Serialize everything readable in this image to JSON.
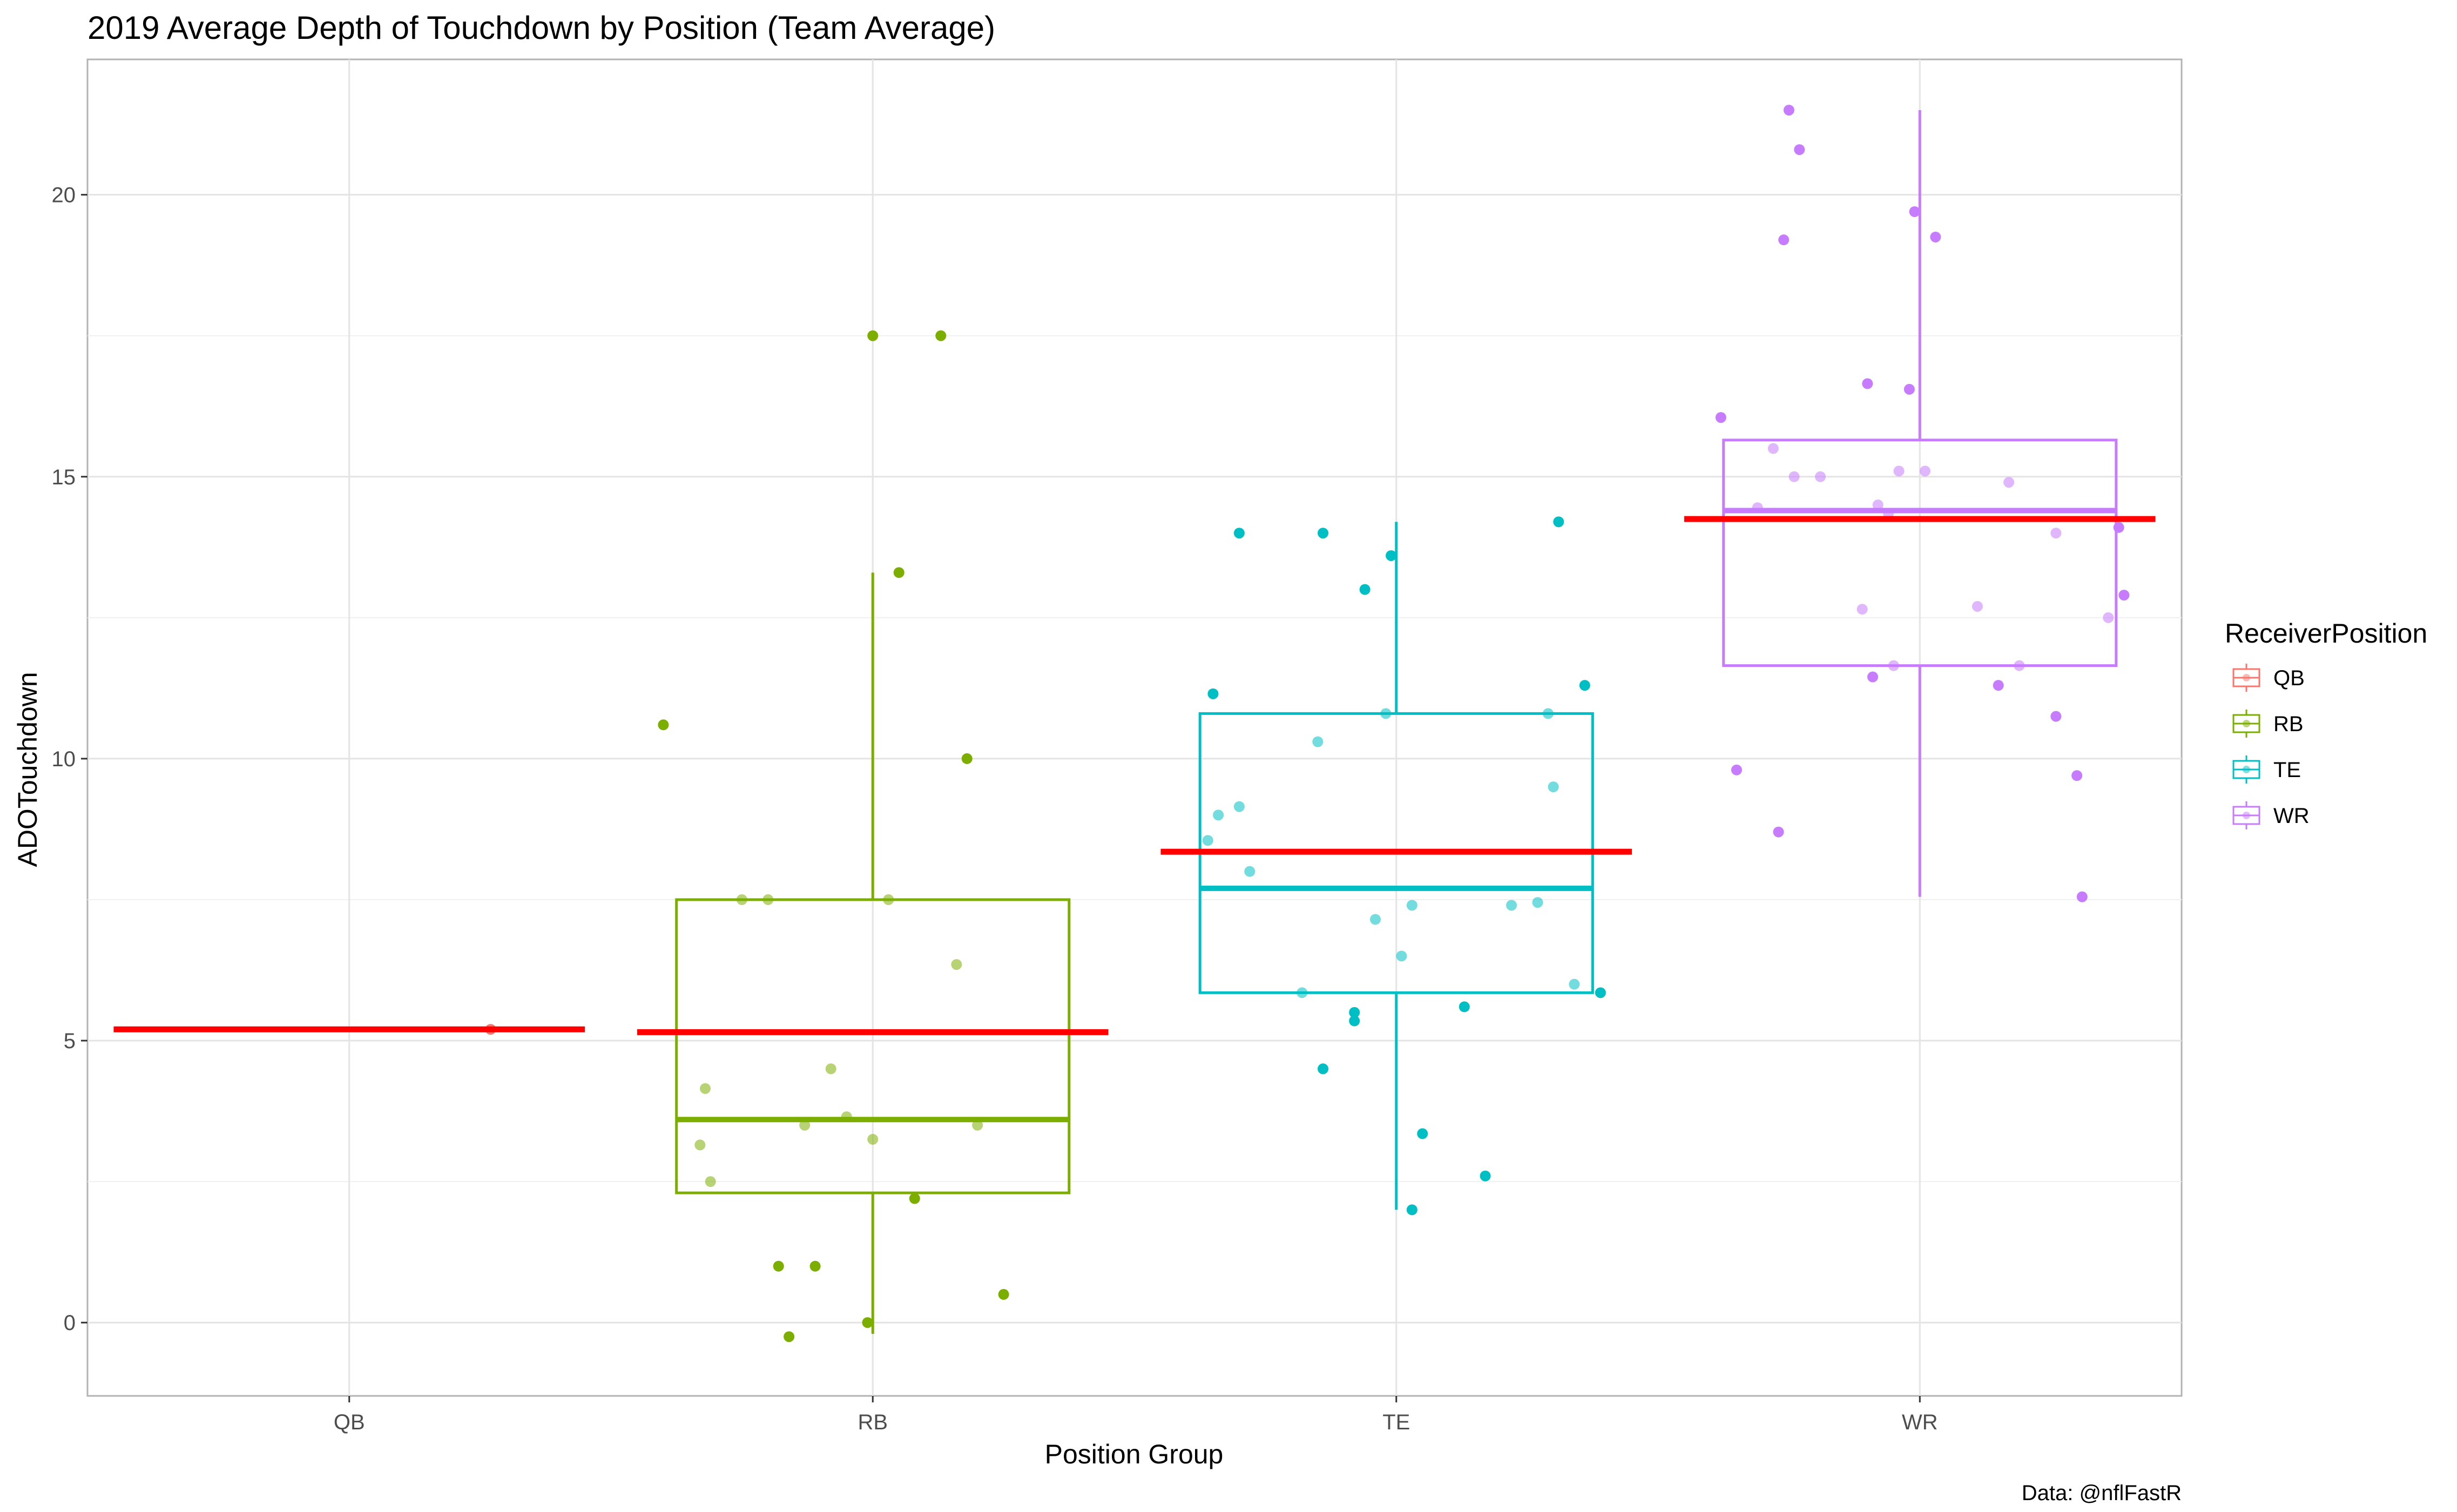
{
  "chart_data": {
    "type": "box",
    "title": "2019 Average Depth of Touchdown by Position (Team Average)",
    "xlabel": "Position Group",
    "ylabel": "ADOTouchdown",
    "categories": [
      "QB",
      "RB",
      "TE",
      "WR"
    ],
    "ylim": [
      -1.3,
      22.4
    ],
    "yticks": [
      0,
      5,
      10,
      15,
      20
    ],
    "grid": true,
    "legend": {
      "title": "ReceiverPosition",
      "position": "right",
      "items": [
        {
          "label": "QB",
          "color": "#F8766D"
        },
        {
          "label": "RB",
          "color": "#7CAE00"
        },
        {
          "label": "TE",
          "color": "#00BFC4"
        },
        {
          "label": "WR",
          "color": "#C77CFF"
        }
      ]
    },
    "mean_line_color": "#FF0000",
    "caption": "Data: @nflFastR",
    "series": [
      {
        "name": "QB",
        "color": "#F8766D",
        "box": null,
        "mean": 5.2,
        "points": [
          {
            "x": 0.27,
            "y": 5.2
          }
        ]
      },
      {
        "name": "RB",
        "color": "#7CAE00",
        "box": {
          "low": -0.2,
          "q1": 2.3,
          "median": 3.6,
          "q3": 7.5,
          "high": 13.3
        },
        "mean": 5.15,
        "points": [
          {
            "x": -0.4,
            "y": 10.6
          },
          {
            "x": 0.0,
            "y": 17.5
          },
          {
            "x": 0.13,
            "y": 17.5
          },
          {
            "x": 0.05,
            "y": 13.3
          },
          {
            "x": 0.18,
            "y": 10.0
          },
          {
            "x": -0.25,
            "y": 7.5
          },
          {
            "x": -0.2,
            "y": 7.5
          },
          {
            "x": 0.03,
            "y": 7.5
          },
          {
            "x": 0.16,
            "y": 6.35
          },
          {
            "x": -0.32,
            "y": 4.15
          },
          {
            "x": -0.08,
            "y": 4.5
          },
          {
            "x": -0.05,
            "y": 3.65
          },
          {
            "x": -0.33,
            "y": 3.15
          },
          {
            "x": -0.13,
            "y": 3.5
          },
          {
            "x": 0.0,
            "y": 3.25
          },
          {
            "x": 0.2,
            "y": 3.5
          },
          {
            "x": -0.31,
            "y": 2.5
          },
          {
            "x": 0.08,
            "y": 2.2
          },
          {
            "x": -0.18,
            "y": 1.0
          },
          {
            "x": -0.11,
            "y": 1.0
          },
          {
            "x": 0.25,
            "y": 0.5
          },
          {
            "x": -0.01,
            "y": 0.0
          },
          {
            "x": -0.16,
            "y": -0.25
          }
        ]
      },
      {
        "name": "TE",
        "color": "#00BFC4",
        "box": {
          "low": 2.0,
          "q1": 5.85,
          "median": 7.7,
          "q3": 10.8,
          "high": 14.2
        },
        "mean": 8.35,
        "points": [
          {
            "x": -0.3,
            "y": 14.0
          },
          {
            "x": -0.14,
            "y": 14.0
          },
          {
            "x": -0.01,
            "y": 13.6
          },
          {
            "x": 0.31,
            "y": 14.2
          },
          {
            "x": -0.06,
            "y": 13.0
          },
          {
            "x": -0.35,
            "y": 11.15
          },
          {
            "x": 0.36,
            "y": 11.3
          },
          {
            "x": -0.02,
            "y": 10.8
          },
          {
            "x": 0.29,
            "y": 10.8
          },
          {
            "x": -0.15,
            "y": 10.3
          },
          {
            "x": 0.3,
            "y": 9.5
          },
          {
            "x": -0.34,
            "y": 9.0
          },
          {
            "x": -0.3,
            "y": 9.15
          },
          {
            "x": -0.36,
            "y": 8.55
          },
          {
            "x": -0.28,
            "y": 8.0
          },
          {
            "x": -0.04,
            "y": 7.15
          },
          {
            "x": 0.03,
            "y": 7.4
          },
          {
            "x": 0.22,
            "y": 7.4
          },
          {
            "x": 0.27,
            "y": 7.45
          },
          {
            "x": 0.01,
            "y": 6.5
          },
          {
            "x": 0.34,
            "y": 6.0
          },
          {
            "x": 0.39,
            "y": 5.85
          },
          {
            "x": -0.18,
            "y": 5.85
          },
          {
            "x": 0.13,
            "y": 5.6
          },
          {
            "x": -0.08,
            "y": 5.5
          },
          {
            "x": -0.08,
            "y": 5.35
          },
          {
            "x": -0.14,
            "y": 4.5
          },
          {
            "x": 0.05,
            "y": 3.35
          },
          {
            "x": 0.17,
            "y": 2.6
          },
          {
            "x": 0.03,
            "y": 2.0
          }
        ]
      },
      {
        "name": "WR",
        "color": "#C77CFF",
        "box": {
          "low": 7.55,
          "q1": 11.65,
          "median": 14.4,
          "q3": 15.65,
          "high": 21.5
        },
        "mean": 14.25,
        "points": [
          {
            "x": -0.25,
            "y": 21.5
          },
          {
            "x": -0.23,
            "y": 20.8
          },
          {
            "x": -0.26,
            "y": 19.2
          },
          {
            "x": -0.01,
            "y": 19.7
          },
          {
            "x": 0.03,
            "y": 19.25
          },
          {
            "x": -0.1,
            "y": 16.65
          },
          {
            "x": -0.02,
            "y": 16.55
          },
          {
            "x": -0.38,
            "y": 16.05
          },
          {
            "x": -0.28,
            "y": 15.5
          },
          {
            "x": -0.24,
            "y": 15.0
          },
          {
            "x": -0.19,
            "y": 15.0
          },
          {
            "x": -0.04,
            "y": 15.1
          },
          {
            "x": 0.01,
            "y": 15.1
          },
          {
            "x": 0.17,
            "y": 14.9
          },
          {
            "x": -0.31,
            "y": 14.45
          },
          {
            "x": -0.08,
            "y": 14.5
          },
          {
            "x": -0.06,
            "y": 14.35
          },
          {
            "x": 0.26,
            "y": 14.0
          },
          {
            "x": 0.38,
            "y": 14.1
          },
          {
            "x": -0.11,
            "y": 12.65
          },
          {
            "x": 0.11,
            "y": 12.7
          },
          {
            "x": 0.36,
            "y": 12.5
          },
          {
            "x": 0.39,
            "y": 12.9
          },
          {
            "x": -0.05,
            "y": 11.65
          },
          {
            "x": -0.09,
            "y": 11.45
          },
          {
            "x": 0.19,
            "y": 11.65
          },
          {
            "x": 0.15,
            "y": 11.3
          },
          {
            "x": 0.26,
            "y": 10.75
          },
          {
            "x": -0.35,
            "y": 9.8
          },
          {
            "x": 0.3,
            "y": 9.7
          },
          {
            "x": -0.27,
            "y": 8.7
          },
          {
            "x": 0.31,
            "y": 7.55
          }
        ]
      }
    ]
  }
}
